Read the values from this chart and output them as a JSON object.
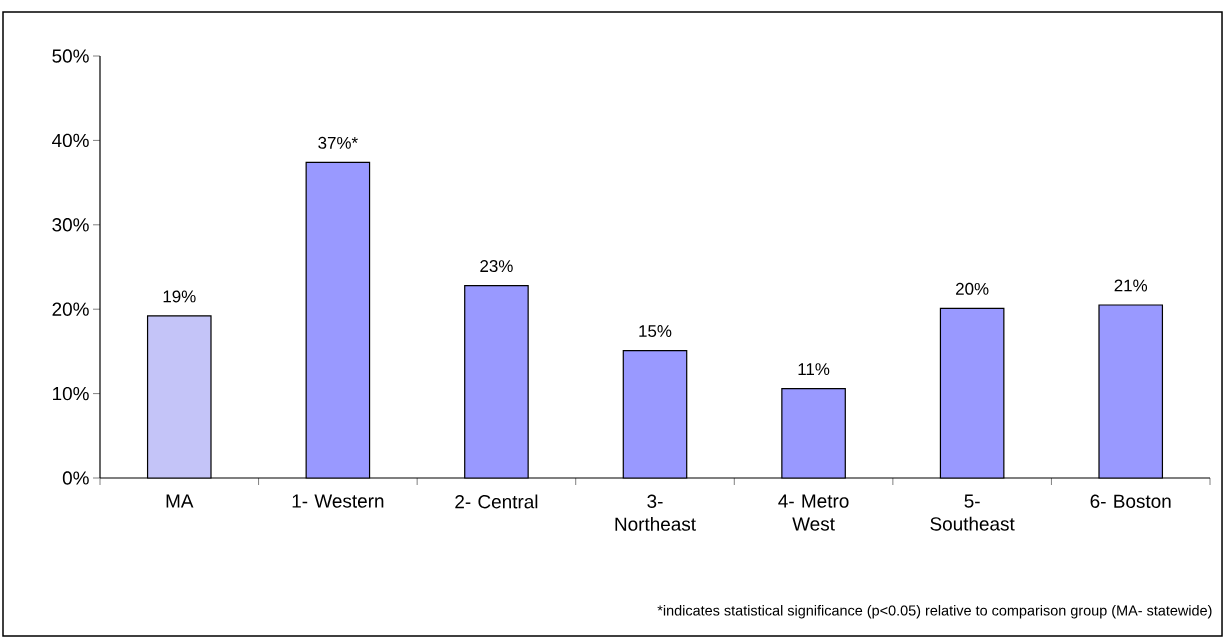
{
  "chart_data": {
    "type": "bar",
    "categories": [
      "MA",
      "1- Western",
      "2- Central",
      "3- Northeast",
      "4- Metro West",
      "5- Southeast",
      "6- Boston"
    ],
    "values": [
      19.2,
      37.4,
      22.8,
      15.1,
      10.6,
      20.1,
      20.5
    ],
    "colors": [
      "#c4c4f8",
      "#9999ff",
      "#9999ff",
      "#9999ff",
      "#9999ff",
      "#9999ff",
      "#9999ff"
    ],
    "value_labels": [
      "19%",
      "37%*",
      "23%",
      "15%",
      "11%",
      "20%",
      "21%"
    ],
    "ylim": [
      0,
      50
    ],
    "yticks": [
      {
        "value": 0,
        "label": "0%"
      },
      {
        "value": 10,
        "label": "10%"
      },
      {
        "value": 20,
        "label": "20%"
      },
      {
        "value": 30,
        "label": "30%"
      },
      {
        "value": 40,
        "label": "40%"
      },
      {
        "value": 50,
        "label": "50%"
      }
    ],
    "annotations": [
      "*indicates statistical significance (p<0.05) relative to comparison group (MA- statewide)"
    ]
  }
}
